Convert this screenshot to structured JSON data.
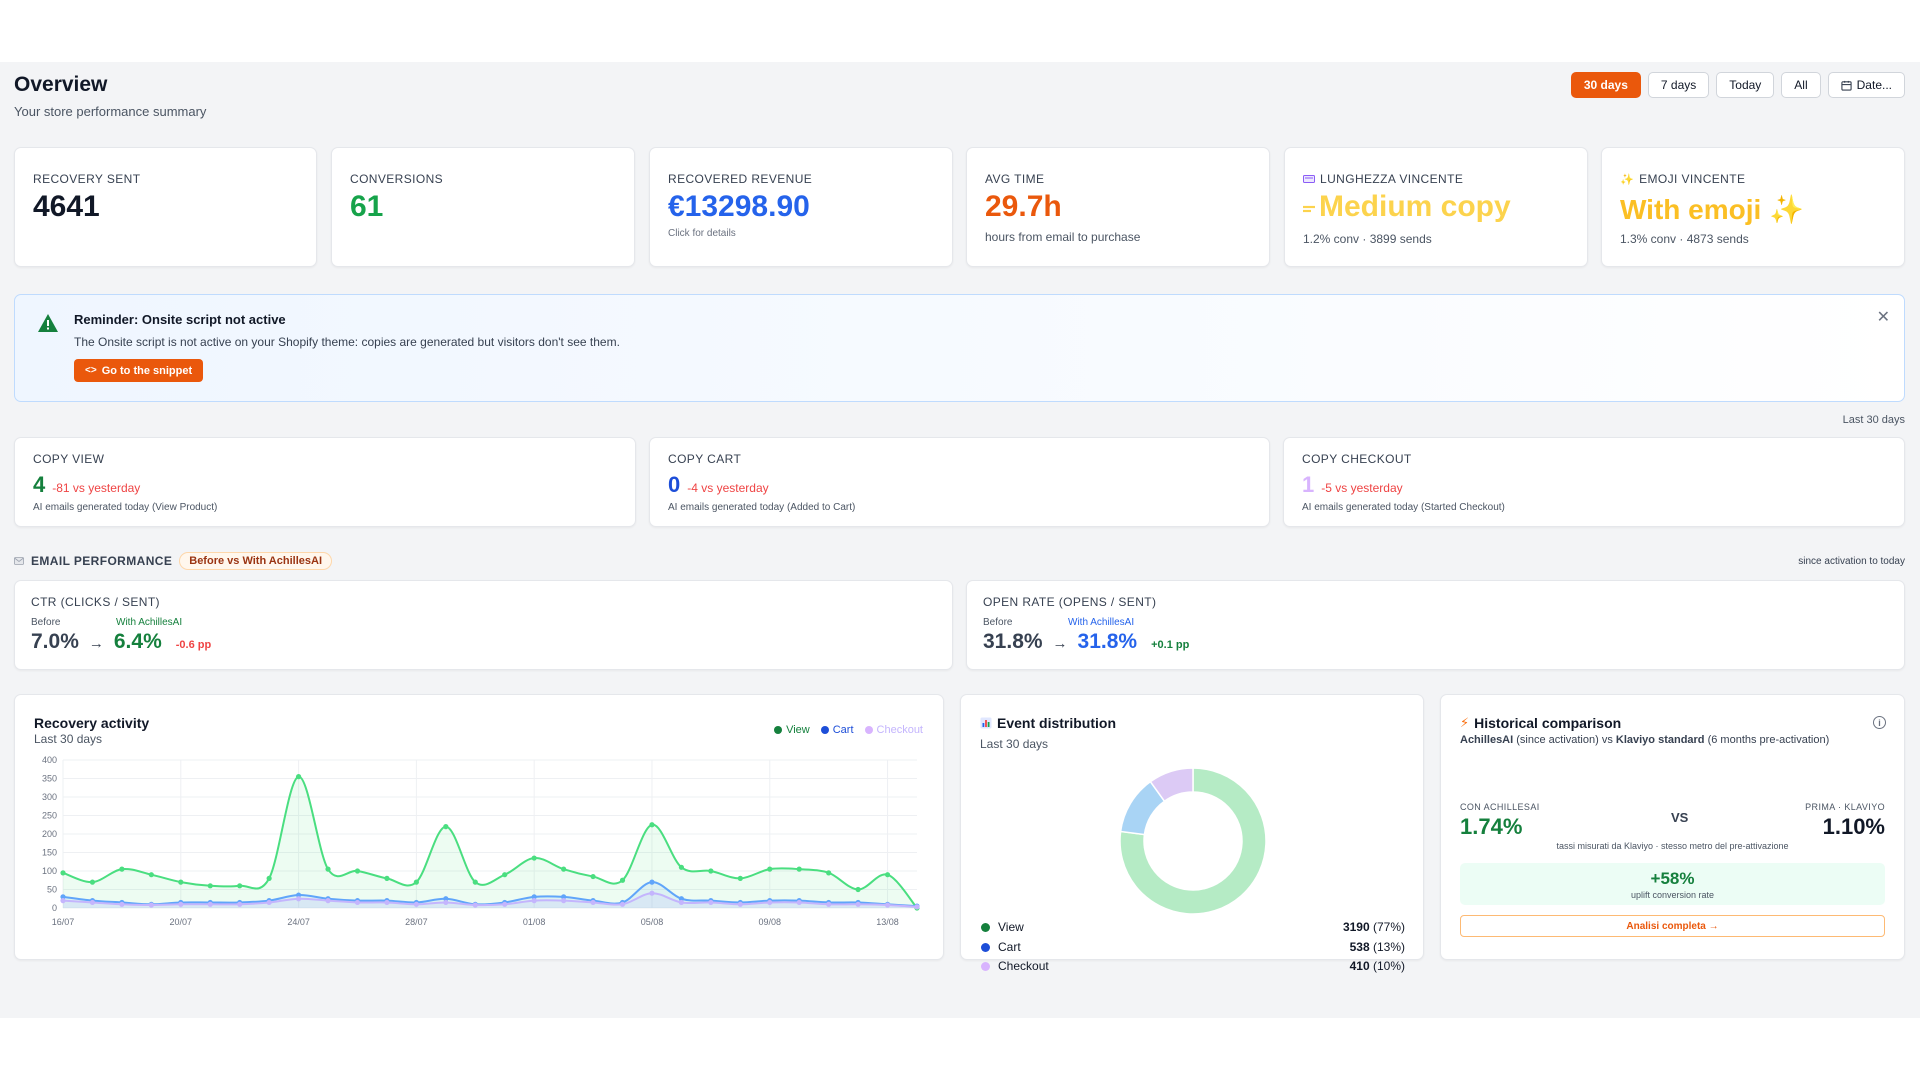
{
  "header": {
    "title": "Overview",
    "subtitle": "Your store performance summary",
    "ranges": [
      "30 days",
      "7 days",
      "Today",
      "All",
      "Date..."
    ],
    "active_range": "30 days"
  },
  "kpis": [
    {
      "label": "RECOVERY SENT",
      "value": "4641",
      "sub": "",
      "color": "#111827"
    },
    {
      "label": "CONVERSIONS",
      "value": "61",
      "sub": "",
      "color": "#16a34a"
    },
    {
      "label": "RECOVERED REVENUE",
      "value": "€13298.90",
      "sub": "Click for details",
      "color": "#2563eb"
    },
    {
      "label": "AVG TIME",
      "value": "29.7h",
      "sub": "hours from email to purchase",
      "color": "#ea580c"
    },
    {
      "label": "LUNGHEZZA VINCENTE",
      "value": "Medium copy",
      "sub": "1.2% conv · 3899 sends",
      "color": "#fcd34d"
    },
    {
      "label": "EMOJI VINCENTE",
      "value": "With emoji ✨",
      "sub": "1.3% conv · 4873 sends",
      "color": "#fbbf24"
    }
  ],
  "alert": {
    "title": "Reminder: Onsite script not active",
    "text": "The Onsite script is not active on your Shopify theme: copies are generated but visitors don't see them.",
    "button": "Go to the snippet"
  },
  "copy_period": "Last 30 days",
  "copy_cards": [
    {
      "label": "COPY VIEW",
      "value": "4",
      "delta": "-81 vs yesterday",
      "sub": "AI emails generated today (View Product)",
      "color": "#15803d"
    },
    {
      "label": "COPY CART",
      "value": "0",
      "delta": "-4 vs yesterday",
      "sub": "AI emails generated today (Added to Cart)",
      "color": "#1d4ed8"
    },
    {
      "label": "COPY CHECKOUT",
      "value": "1",
      "delta": "-5 vs yesterday",
      "sub": "AI emails generated today (Started Checkout)",
      "color": "#d8b4fe"
    }
  ],
  "email_performance": {
    "title": "EMAIL PERFORMANCE",
    "badge": "Before vs With AchillesAI",
    "period": "since activation to today",
    "cards": [
      {
        "label": "CTR (CLICKS / SENT)",
        "before_label": "Before",
        "after_label": "With AchillesAI",
        "before": "7.0%",
        "after": "6.4%",
        "delta": "-0.6 pp",
        "after_color": "#15803d",
        "delta_color": "#ef4444"
      },
      {
        "label": "OPEN RATE (OPENS / SENT)",
        "before_label": "Before",
        "after_label": "With AchillesAI",
        "before": "31.8%",
        "after": "31.8%",
        "delta": "+0.1 pp",
        "after_color": "#2563eb",
        "delta_color": "#15803d"
      }
    ]
  },
  "recovery_activity": {
    "title": "Recovery activity",
    "subtitle": "Last 30 days"
  },
  "chart_data": [
    {
      "type": "line",
      "title": "Recovery activity",
      "subtitle": "Last 30 days",
      "x": [
        "16/07",
        "17/07",
        "18/07",
        "19/07",
        "20/07",
        "21/07",
        "22/07",
        "23/07",
        "24/07",
        "25/07",
        "26/07",
        "27/07",
        "28/07",
        "29/07",
        "30/07",
        "31/07",
        "01/08",
        "02/08",
        "03/08",
        "04/08",
        "05/08",
        "06/08",
        "07/08",
        "08/08",
        "09/08",
        "10/08",
        "11/08",
        "12/08",
        "13/08",
        "14/08"
      ],
      "x_tick_labels": [
        "16/07",
        "20/07",
        "24/07",
        "28/07",
        "01/08",
        "05/08",
        "09/08",
        "13/08"
      ],
      "y_ticks": [
        0,
        50,
        100,
        150,
        200,
        250,
        300,
        350,
        400
      ],
      "ylim": [
        0,
        400
      ],
      "legend_position": "top-right",
      "grid": true,
      "series": [
        {
          "name": "View",
          "color": "#4ade80",
          "values": [
            95,
            70,
            105,
            90,
            70,
            60,
            60,
            80,
            355,
            105,
            100,
            80,
            70,
            220,
            70,
            90,
            135,
            105,
            85,
            75,
            225,
            110,
            100,
            80,
            105,
            105,
            95,
            50,
            90,
            0
          ]
        },
        {
          "name": "Cart",
          "color": "#60a5fa",
          "values": [
            30,
            20,
            15,
            10,
            15,
            15,
            15,
            20,
            35,
            25,
            20,
            20,
            15,
            25,
            10,
            15,
            30,
            30,
            20,
            15,
            70,
            25,
            20,
            15,
            20,
            20,
            15,
            15,
            10,
            5
          ]
        },
        {
          "name": "Checkout",
          "color": "#c4b5fd",
          "values": [
            20,
            15,
            10,
            8,
            10,
            10,
            10,
            15,
            25,
            20,
            15,
            15,
            10,
            15,
            8,
            10,
            20,
            20,
            15,
            10,
            40,
            15,
            15,
            10,
            15,
            15,
            10,
            10,
            8,
            3
          ]
        }
      ]
    },
    {
      "type": "pie",
      "title": "Event distribution",
      "subtitle": "Last 30 days",
      "slices": [
        {
          "name": "View",
          "value": 3190,
          "pct": "(77%)",
          "color": "#15803d",
          "ring_color": "#b5ebc5"
        },
        {
          "name": "Cart",
          "value": 538,
          "pct": "(13%)",
          "color": "#1d4ed8",
          "ring_color": "#a9d4f5"
        },
        {
          "name": "Checkout",
          "value": 410,
          "pct": "(10%)",
          "color": "#d8b4fe",
          "ring_color": "#dccaf5"
        }
      ]
    }
  ],
  "historical": {
    "title": "Historical comparison",
    "sub_brand": "AchillesAI",
    "sub_mid": " (since activation) vs ",
    "sub_ref": "Klaviyo standard",
    "sub_end": " (6 months pre-activation)",
    "left_label": "CON ACHILLESAI",
    "left_value": "1.74%",
    "vs": "VS",
    "right_label": "PRIMA · KLAVIYO",
    "right_value": "1.10%",
    "note": "tassi misurati da Klaviyo · stesso metro del pre-attivazione",
    "uplift_value": "+58%",
    "uplift_label": "uplift conversion rate",
    "button": "Analisi completa →"
  }
}
